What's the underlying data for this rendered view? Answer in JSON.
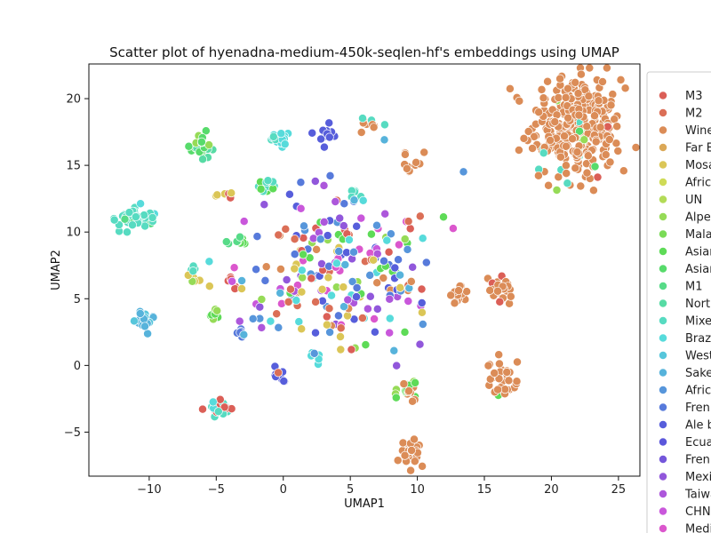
{
  "chart_data": {
    "type": "scatter",
    "title": "Scatter plot of hyenadna-medium-450k-seqlen-hf's embeddings using UMAP",
    "xlabel": "UMAP1",
    "ylabel": "UMAP2",
    "xlim": [
      -14.5,
      26.6
    ],
    "ylim": [
      -8.3,
      22.6
    ],
    "xticks": [
      -10,
      -5,
      0,
      5,
      10,
      15,
      20,
      25
    ],
    "yticks": [
      -5,
      0,
      5,
      10,
      15,
      20
    ],
    "grid": false,
    "legend_position": "right, clipped at image edge",
    "legend": [
      {
        "label": "M3",
        "color": "#db5f57"
      },
      {
        "label": "M2",
        "color": "#db6f57"
      },
      {
        "label": "Wine",
        "color": "#db8c57"
      },
      {
        "label": "Far E",
        "color": "#dba857"
      },
      {
        "label": "Mosa",
        "color": "#dbc657"
      },
      {
        "label": " Afric",
        "color": "#cfdb57"
      },
      {
        "label": "UN",
        "color": "#b3db57"
      },
      {
        "label": "Alpe",
        "color": "#96db57"
      },
      {
        "label": "Mala",
        "color": "#7adb57"
      },
      {
        "label": "Asian",
        "color": "#5edb57"
      },
      {
        "label": "Asian",
        "color": "#57db6b"
      },
      {
        "label": "M1",
        "color": "#57db88"
      },
      {
        "label": "North",
        "color": "#57dba4"
      },
      {
        "label": "Mixe",
        "color": "#57dbc1"
      },
      {
        "label": "Braz",
        "color": "#57dbdb"
      },
      {
        "label": "West",
        "color": "#57c6db"
      },
      {
        "label": "Sake",
        "color": "#57b3db"
      },
      {
        "label": "Africa",
        "color": "#5796db"
      },
      {
        "label": "Fren",
        "color": "#577adb"
      },
      {
        "label": "Ale b",
        "color": "#575edb"
      },
      {
        "label": "Ecua",
        "color": "#5b57db"
      },
      {
        "label": "Fren",
        "color": "#7457db"
      },
      {
        "label": "Mexi",
        "color": "#9157db"
      },
      {
        "label": "Taiwa",
        "color": "#ad57db"
      },
      {
        "label": "CHN",
        "color": "#c957db"
      },
      {
        "label": "Medi",
        "color": "#db57cd"
      }
    ],
    "clusters": [
      {
        "cx": 21.8,
        "cy": 17.8,
        "sx": 1.7,
        "sy": 2.0,
        "n": 320,
        "colors": [
          "#db8c57"
        ],
        "mix": [
          "#db5f57",
          "#96db57",
          "#57dbc1",
          "#57db6b"
        ],
        "mixp": 0.08
      },
      {
        "cx": 9.5,
        "cy": -6.5,
        "sx": 0.55,
        "sy": 0.5,
        "n": 26,
        "colors": [
          "#db8c57"
        ],
        "mix": [],
        "mixp": 0
      },
      {
        "cx": 16.3,
        "cy": -1.0,
        "sx": 0.55,
        "sy": 0.6,
        "n": 32,
        "colors": [
          "#db8c57"
        ],
        "mix": [
          "#5edb57"
        ],
        "mixp": 0.05
      },
      {
        "cx": 16.2,
        "cy": 5.6,
        "sx": 0.5,
        "sy": 0.55,
        "n": 26,
        "colors": [
          "#db8c57"
        ],
        "mix": [
          "#db5f57"
        ],
        "mixp": 0.05
      },
      {
        "cx": 13.2,
        "cy": 5.3,
        "sx": 0.35,
        "sy": 0.45,
        "n": 16,
        "colors": [
          "#db8c57"
        ],
        "mix": [],
        "mixp": 0
      },
      {
        "cx": 9.3,
        "cy": 15.3,
        "sx": 0.4,
        "sy": 0.35,
        "n": 12,
        "colors": [
          "#db8c57"
        ],
        "mix": [],
        "mixp": 0
      },
      {
        "cx": 6.4,
        "cy": 18.1,
        "sx": 0.4,
        "sy": 0.3,
        "n": 10,
        "colors": [
          "#db8c57"
        ],
        "mix": [
          "#57dbc1"
        ],
        "mixp": 0.2
      },
      {
        "cx": 9.2,
        "cy": -2.0,
        "sx": 0.4,
        "sy": 0.5,
        "n": 20,
        "colors": [
          "#db8c57"
        ],
        "mix": [
          "#96db57",
          "#5edb57"
        ],
        "mixp": 0.3
      },
      {
        "cx": 3.2,
        "cy": 17.3,
        "sx": 0.35,
        "sy": 0.35,
        "n": 14,
        "colors": [
          "#575edb"
        ],
        "mix": [],
        "mixp": 0
      },
      {
        "cx": -0.3,
        "cy": 16.9,
        "sx": 0.45,
        "sy": 0.35,
        "n": 18,
        "colors": [
          "#57dbdb"
        ],
        "mix": [
          "#57dbc1"
        ],
        "mixp": 0.3
      },
      {
        "cx": -6.1,
        "cy": 16.5,
        "sx": 0.45,
        "sy": 0.5,
        "n": 24,
        "colors": [
          "#57db6b"
        ],
        "mix": [
          "#96db57",
          "#57dba4"
        ],
        "mixp": 0.4
      },
      {
        "cx": -11.2,
        "cy": 11.1,
        "sx": 0.65,
        "sy": 0.45,
        "n": 36,
        "colors": [
          "#57dbc1"
        ],
        "mix": [
          "#57db88",
          "#57dbdb"
        ],
        "mixp": 0.35
      },
      {
        "cx": -10.4,
        "cy": 3.4,
        "sx": 0.4,
        "sy": 0.4,
        "n": 18,
        "colors": [
          "#57b3db"
        ],
        "mix": [
          "#57c6db"
        ],
        "mixp": 0.3
      },
      {
        "cx": -4.7,
        "cy": -3.2,
        "sx": 0.5,
        "sy": 0.4,
        "n": 22,
        "colors": [
          "#db5f57",
          "#57dbdb"
        ],
        "mix": [
          "#57dbc1"
        ],
        "mixp": 0.2
      },
      {
        "cx": -0.3,
        "cy": -0.6,
        "sx": 0.3,
        "sy": 0.3,
        "n": 10,
        "colors": [
          "#575edb"
        ],
        "mix": [
          "#db6f57"
        ],
        "mixp": 0.2
      },
      {
        "cx": -6.7,
        "cy": 6.8,
        "sx": 0.35,
        "sy": 0.35,
        "n": 10,
        "colors": [
          "#57dbc1"
        ],
        "mix": [
          "#dbc657",
          "#96db57"
        ],
        "mixp": 0.4
      },
      {
        "cx": -1.2,
        "cy": 13.5,
        "sx": 0.4,
        "sy": 0.35,
        "n": 12,
        "colors": [
          "#57dbc1"
        ],
        "mix": [
          "#5edb57"
        ],
        "mixp": 0.3
      },
      {
        "cx": -4.4,
        "cy": 12.7,
        "sx": 0.35,
        "sy": 0.3,
        "n": 8,
        "colors": [
          "#dbc657"
        ],
        "mix": [
          "#db5f57"
        ],
        "mixp": 0.3
      },
      {
        "cx": 5.6,
        "cy": 12.9,
        "sx": 0.3,
        "sy": 0.3,
        "n": 6,
        "colors": [
          "#57dbc1"
        ],
        "mix": [],
        "mixp": 0
      },
      {
        "cx": -5.2,
        "cy": 3.8,
        "sx": 0.3,
        "sy": 0.3,
        "n": 8,
        "colors": [
          "#5edb57"
        ],
        "mix": [
          "#96db57"
        ],
        "mixp": 0.4
      },
      {
        "cx": -3.1,
        "cy": 2.5,
        "sx": 0.25,
        "sy": 0.2,
        "n": 6,
        "colors": [
          "#57b3db"
        ],
        "mix": [
          "#577adb"
        ],
        "mixp": 0.4
      },
      {
        "cx": 2.3,
        "cy": 0.6,
        "sx": 0.3,
        "sy": 0.2,
        "n": 6,
        "colors": [
          "#57dbdb"
        ],
        "mix": [],
        "mixp": 0
      },
      {
        "cx": -3.3,
        "cy": 9.2,
        "sx": 0.3,
        "sy": 0.3,
        "n": 10,
        "colors": [
          "#5edb57"
        ],
        "mix": [
          "#57db88"
        ],
        "mixp": 0.3
      },
      {
        "cx": -3.9,
        "cy": 6.2,
        "sx": 0.25,
        "sy": 0.25,
        "n": 7,
        "colors": [
          "#db5f57"
        ],
        "mix": [],
        "mixp": 0
      },
      {
        "cx": 4.5,
        "cy": 7.3,
        "sx": 3.6,
        "sy": 3.0,
        "n": 240,
        "colors": [
          "#db5f57",
          "#db6f57",
          "#db8c57",
          "#577adb",
          "#5796db",
          "#575edb",
          "#96db57",
          "#5edb57",
          "#dbc657",
          "#9157db",
          "#c957db",
          "#db57cd",
          "#57dbdb",
          "#57b3db",
          "#ad57db"
        ],
        "mix": [],
        "mixp": 0
      }
    ]
  }
}
